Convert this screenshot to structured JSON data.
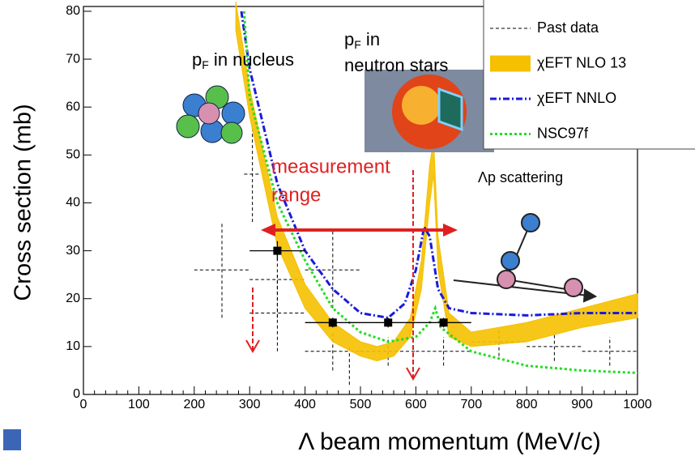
{
  "chart_data": {
    "type": "line",
    "y_label": "Cross section (mb)",
    "x_label": "Λ beam momentum (MeV/c)",
    "xlim": [
      0,
      1000
    ],
    "ylim": [
      0,
      81
    ],
    "xticks": [
      0,
      100,
      200,
      300,
      400,
      500,
      600,
      700,
      800,
      900,
      1000
    ],
    "yticks": [
      0,
      10,
      20,
      30,
      40,
      50,
      60,
      70,
      80
    ],
    "annotations": {
      "nucleus": {
        "main": "p",
        "sub": "F",
        "rest": " in nucleus"
      },
      "neutron_stars": {
        "main": "p",
        "sub": "F",
        "rest": " in",
        "line2": "neutron stars"
      },
      "measurement": [
        "measurement",
        "range"
      ],
      "scattering": "Λp scattering"
    },
    "legend": "upper right",
    "series": [
      {
        "name": "Past data",
        "kind": "errorbar",
        "color": "#000000",
        "x": [
          250,
          305,
          350,
          350,
          450,
          450,
          480,
          550,
          650,
          750,
          850,
          950
        ],
        "values": [
          26,
          46,
          24,
          17,
          26,
          9,
          6,
          9,
          9,
          11,
          10,
          9
        ],
        "xerr": [
          50,
          15,
          50,
          50,
          50,
          50,
          0,
          50,
          50,
          50,
          50,
          50
        ],
        "yerr": [
          10,
          10,
          8,
          8,
          8,
          4,
          4,
          3,
          3,
          3,
          3,
          3
        ]
      },
      {
        "name": "χEFT NLO 13",
        "kind": "band",
        "color": "#f5c000",
        "x": [
          275,
          300,
          350,
          400,
          450,
          500,
          530,
          560,
          590,
          610,
          625,
          632,
          640,
          660,
          700,
          800,
          900,
          1000
        ],
        "upper": [
          82,
          64,
          37,
          23,
          15,
          11,
          10,
          11,
          16,
          28,
          48,
          53,
          33,
          17,
          13,
          15,
          18,
          21
        ],
        "lower": [
          76,
          58,
          31,
          18,
          11,
          8,
          7,
          8,
          12,
          22,
          40,
          46,
          26,
          12,
          10,
          11,
          14,
          16
        ]
      },
      {
        "name": "χEFT NNLO",
        "kind": "line",
        "color": "#1a1adc",
        "dash": "8,3,2,3",
        "x": [
          285,
          300,
          350,
          400,
          450,
          500,
          550,
          580,
          600,
          615,
          625,
          640,
          660,
          700,
          800,
          900,
          1000
        ],
        "values": [
          80,
          68,
          44,
          30,
          22,
          17,
          16,
          19,
          26,
          35,
          33,
          22,
          18,
          17,
          16.5,
          17,
          17
        ]
      },
      {
        "name": "NSC97f",
        "kind": "line",
        "color": "#22dd22",
        "dash": "3,3",
        "x": [
          290,
          300,
          350,
          400,
          450,
          500,
          550,
          600,
          625,
          635,
          645,
          700,
          800,
          900,
          1000
        ],
        "values": [
          80,
          62,
          40,
          28,
          18,
          13,
          11,
          12,
          15,
          18,
          14,
          9,
          6,
          5,
          4.5
        ]
      },
      {
        "kind": "points",
        "color": "#000000",
        "x": [
          350,
          450,
          550,
          650
        ],
        "values": [
          30,
          15,
          15,
          15
        ],
        "xerr": [
          50,
          50,
          50,
          50
        ],
        "yerr": [
          2,
          1,
          1,
          1
        ]
      }
    ]
  }
}
